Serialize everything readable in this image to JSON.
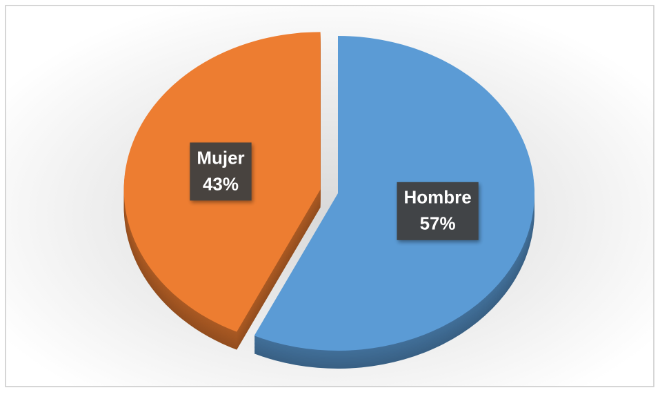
{
  "chart_data": {
    "type": "pie",
    "categories": [
      "Hombre",
      "Mujer"
    ],
    "values": [
      57,
      43
    ],
    "value_labels": [
      "57%",
      "43%"
    ],
    "colors": [
      "#5b9bd5",
      "#ed7d31"
    ],
    "explode": [
      "Mujer"
    ]
  }
}
